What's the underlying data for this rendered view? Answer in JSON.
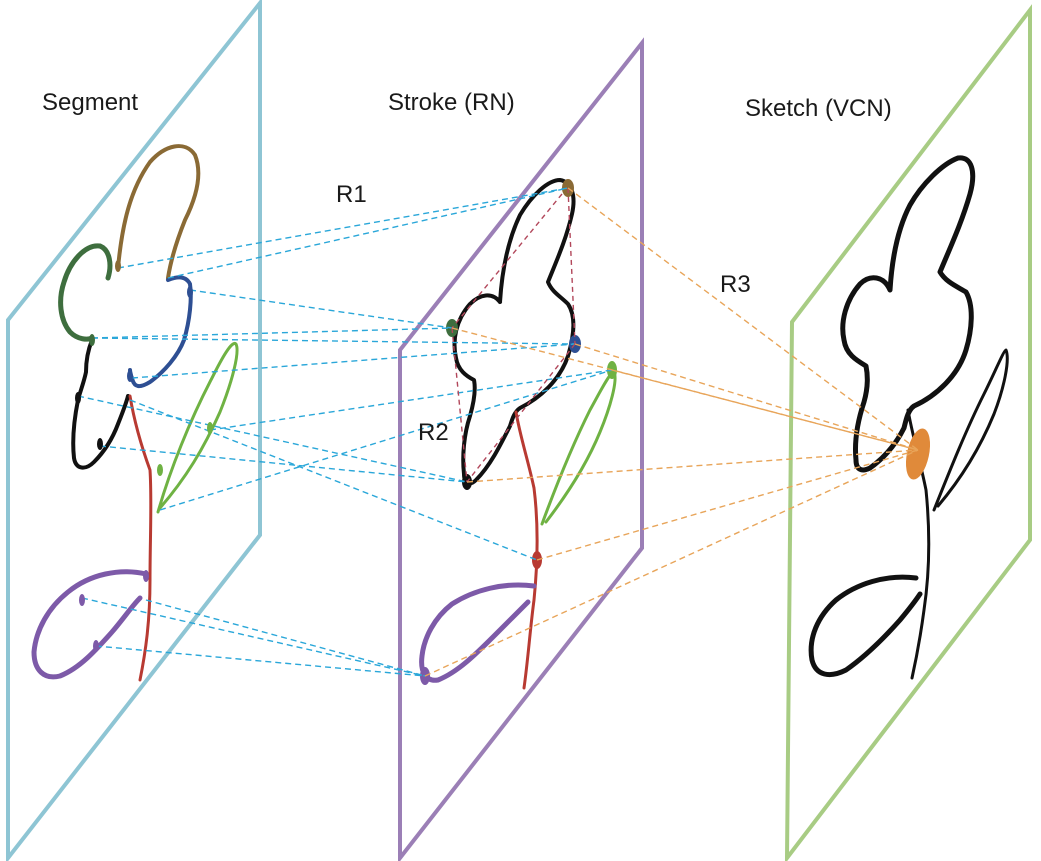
{
  "planes": {
    "segment": {
      "label": "Segment",
      "color": "#8ec5d4"
    },
    "stroke": {
      "label": "Stroke (RN)",
      "color": "#9b7fb6"
    },
    "sketch": {
      "label": "Sketch (VCN)",
      "color": "#a8cc84"
    }
  },
  "relations": {
    "r1": {
      "label": "R1",
      "color": "#2aa7d9"
    },
    "r2": {
      "label": "R2",
      "color": "#b2475b"
    },
    "r3": {
      "label": "R3",
      "color": "#e8a55a"
    }
  },
  "stroke_colors": {
    "petal_top": "#8a6a35",
    "petal_left": "#3e6e3e",
    "petal_right": "#2e4f93",
    "leaf_right": "#6fb243",
    "stem": "#b83a32",
    "leaf_bottom": "#7d5aa8",
    "black": "#111111",
    "hub": "#e08a3a"
  }
}
